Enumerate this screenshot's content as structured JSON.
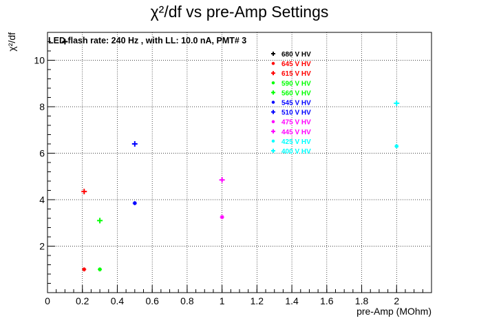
{
  "chart_data": {
    "type": "scatter",
    "title": "χ²/df vs pre-Amp Settings",
    "annotation": "LED flash rate: 240 Hz , with LL: 10.0 nA, PMT# 3",
    "xlabel": "pre-Amp (MOhm)",
    "ylabel": "χ²/df",
    "xlim": [
      0,
      2.2
    ],
    "ylim": [
      0,
      11.2
    ],
    "grid": true,
    "legend_position": "top-right",
    "x_ticks": [
      "0",
      "0.2",
      "0.4",
      "0.6",
      "0.8",
      "1",
      "1.2",
      "1.4",
      "1.6",
      "1.8",
      "2"
    ],
    "y_ticks": [
      "2",
      "4",
      "6",
      "8",
      "10"
    ],
    "series": [
      {
        "name": "680 V HV",
        "color": "#000000",
        "marker": "plus",
        "x": [
          0.1
        ],
        "y": [
          10.8
        ]
      },
      {
        "name": "645 V HV",
        "color": "#ff0000",
        "marker": "star",
        "x": [
          0.21
        ],
        "y": [
          1.0
        ]
      },
      {
        "name": "615 V HV",
        "color": "#ff0000",
        "marker": "plus",
        "x": [
          0.21
        ],
        "y": [
          4.35
        ]
      },
      {
        "name": "590 V HV",
        "color": "#00ff00",
        "marker": "star",
        "x": [
          0.3
        ],
        "y": [
          1.0
        ]
      },
      {
        "name": "560 V HV",
        "color": "#00ff00",
        "marker": "plus",
        "x": [
          0.3
        ],
        "y": [
          3.1
        ]
      },
      {
        "name": "545 V HV",
        "color": "#0000ff",
        "marker": "star",
        "x": [
          0.5
        ],
        "y": [
          3.85
        ]
      },
      {
        "name": "510 V HV",
        "color": "#0000ff",
        "marker": "plus",
        "x": [
          0.5
        ],
        "y": [
          6.4
        ]
      },
      {
        "name": "475 V HV",
        "color": "#ff00ff",
        "marker": "star",
        "x": [
          1.0
        ],
        "y": [
          3.25
        ]
      },
      {
        "name": "445 V HV",
        "color": "#ff00ff",
        "marker": "plus",
        "x": [
          1.0
        ],
        "y": [
          4.85
        ]
      },
      {
        "name": "425 V HV",
        "color": "#00ffff",
        "marker": "star",
        "x": [
          2.0
        ],
        "y": [
          6.3
        ]
      },
      {
        "name": "400 V HV",
        "color": "#00ffff",
        "marker": "plus",
        "x": [
          2.0
        ],
        "y": [
          8.15
        ]
      }
    ]
  }
}
